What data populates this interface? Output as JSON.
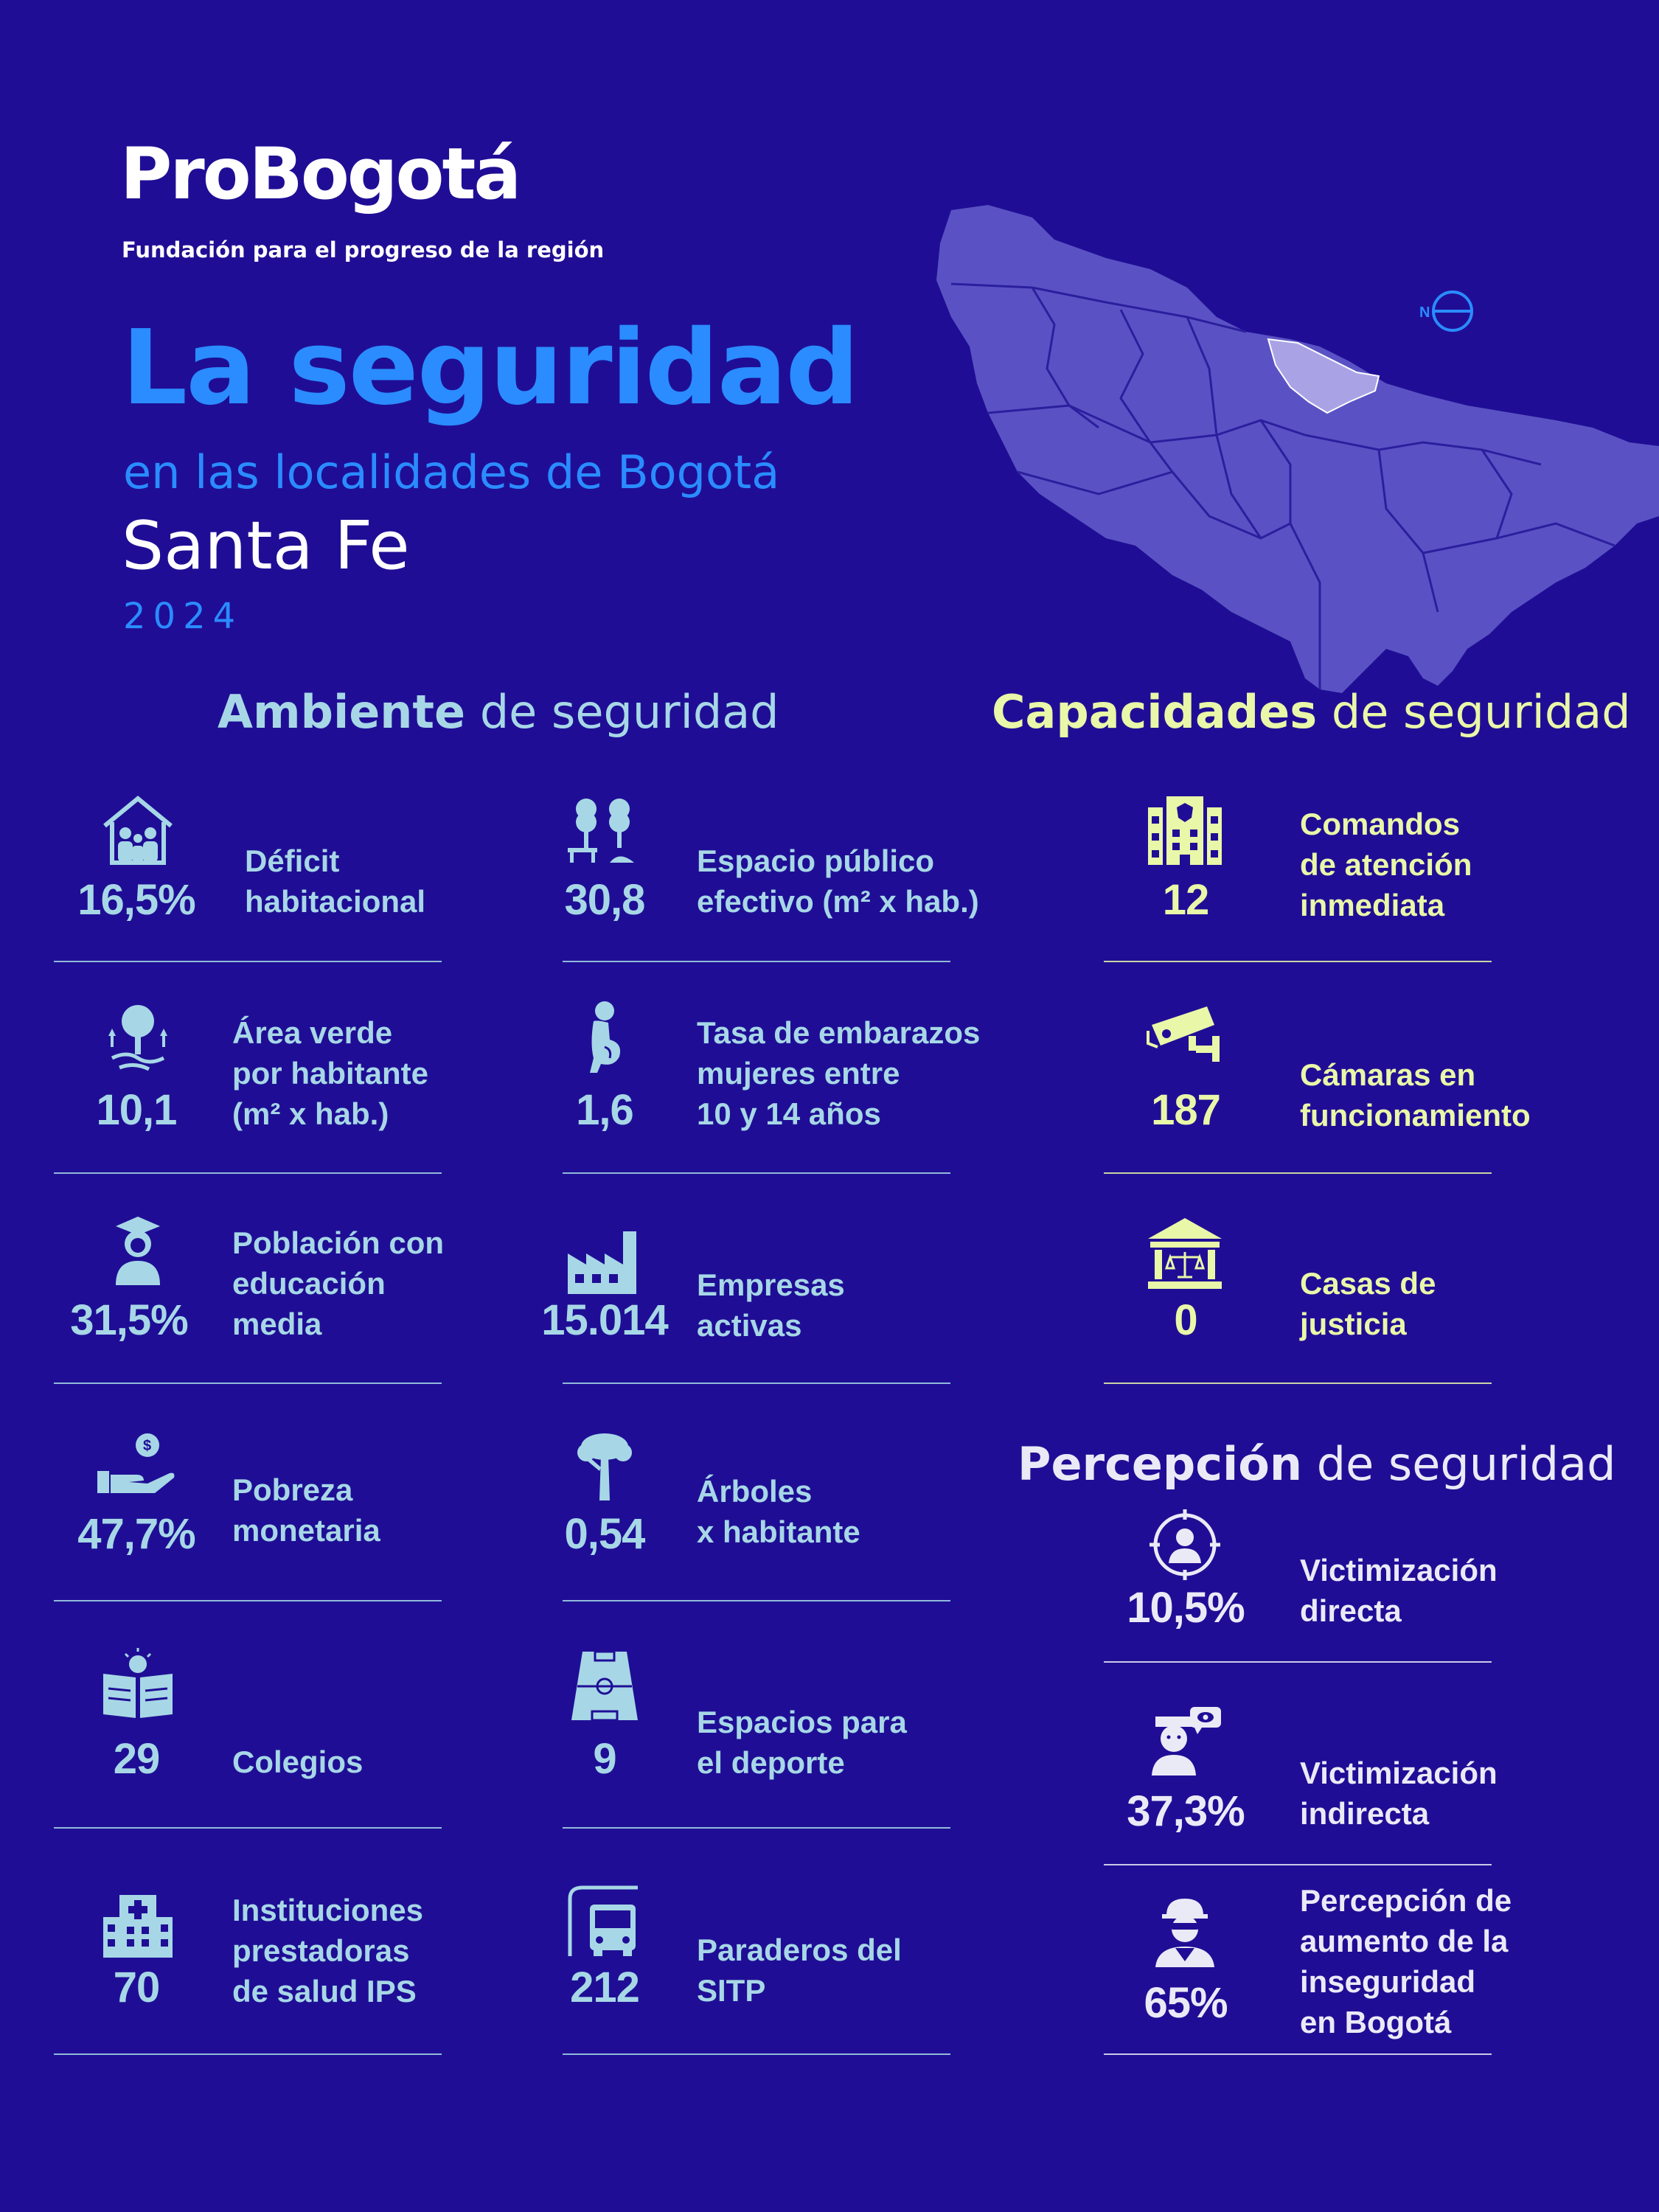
{
  "brand": {
    "name": "ProBogotá",
    "tagline": "Fundación para el progreso de la región"
  },
  "header": {
    "title": "La seguridad",
    "subtitle": "en las localidades de Bogotá",
    "locality": "Santa Fe",
    "year": "2024"
  },
  "map": {
    "north_label": "N"
  },
  "sections": {
    "ambiente": {
      "bold": "Ambiente",
      "rest": " de seguridad"
    },
    "capacidades": {
      "bold": "Capacidades",
      "rest": " de seguridad"
    },
    "percepcion": {
      "bold": "Percepción",
      "rest": " de seguridad"
    }
  },
  "ambiente_left": [
    {
      "icon": "house-family-icon",
      "value": "16,5%",
      "label": "Déficit\nhabitacional"
    },
    {
      "icon": "tree-icon",
      "value": "10,1",
      "label": "Área verde\npor habitante\n(m² x hab.)"
    },
    {
      "icon": "graduate-icon",
      "value": "31,5%",
      "label": "Población con\neducación\nmedia"
    },
    {
      "icon": "hand-money-icon",
      "value": "47,7%",
      "label": "Pobreza\nmonetaria"
    },
    {
      "icon": "book-lightbulb-icon",
      "value": "29",
      "label": "Colegios"
    },
    {
      "icon": "hospital-icon",
      "value": "70",
      "label": "Instituciones\nprestadoras\nde salud IPS"
    }
  ],
  "ambiente_right": [
    {
      "icon": "park-bench-icon",
      "value": "30,8",
      "label": "Espacio público\nefectivo (m² x hab.)"
    },
    {
      "icon": "pregnant-woman-icon",
      "value": "1,6",
      "label": "Tasa de embarazos\nmujeres entre\n10 y 14 años"
    },
    {
      "icon": "factory-icon",
      "value": "15.014",
      "label": "Empresas\nactivas"
    },
    {
      "icon": "single-tree-icon",
      "value": "0,54",
      "label": "Árboles\nx habitante"
    },
    {
      "icon": "sports-field-icon",
      "value": "9",
      "label": "Espacios para\nel deporte"
    },
    {
      "icon": "bus-stop-icon",
      "value": "212",
      "label": "Paraderos del\nSITP"
    }
  ],
  "capacidades": [
    {
      "icon": "police-station-icon",
      "value": "12",
      "label": "Comandos\nde atención\ninmediata"
    },
    {
      "icon": "security-camera-icon",
      "value": "187",
      "label": "Cámaras en\nfuncionamiento"
    },
    {
      "icon": "courthouse-icon",
      "value": "0",
      "label": "Casas de\njusticia"
    }
  ],
  "percepcion": [
    {
      "icon": "target-person-icon",
      "value": "10,5%",
      "label": "Victimización\ndirecta"
    },
    {
      "icon": "witness-person-icon",
      "value": "37,3%",
      "label": "Victimización\nindirecta"
    },
    {
      "icon": "thief-icon",
      "value": "65%",
      "label": "Percepción de\naumento de la\ninseguridad\nen Bogotá"
    }
  ],
  "colors": {
    "background": "#1f0e95",
    "accent_blue": "#2a8cff",
    "ambiente": "#a7d7e6",
    "capacidades": "#e9f7a8",
    "percepcion": "#eaeaf7",
    "map_fill": "#5a52c4",
    "map_highlight": "#a9a3e6"
  }
}
